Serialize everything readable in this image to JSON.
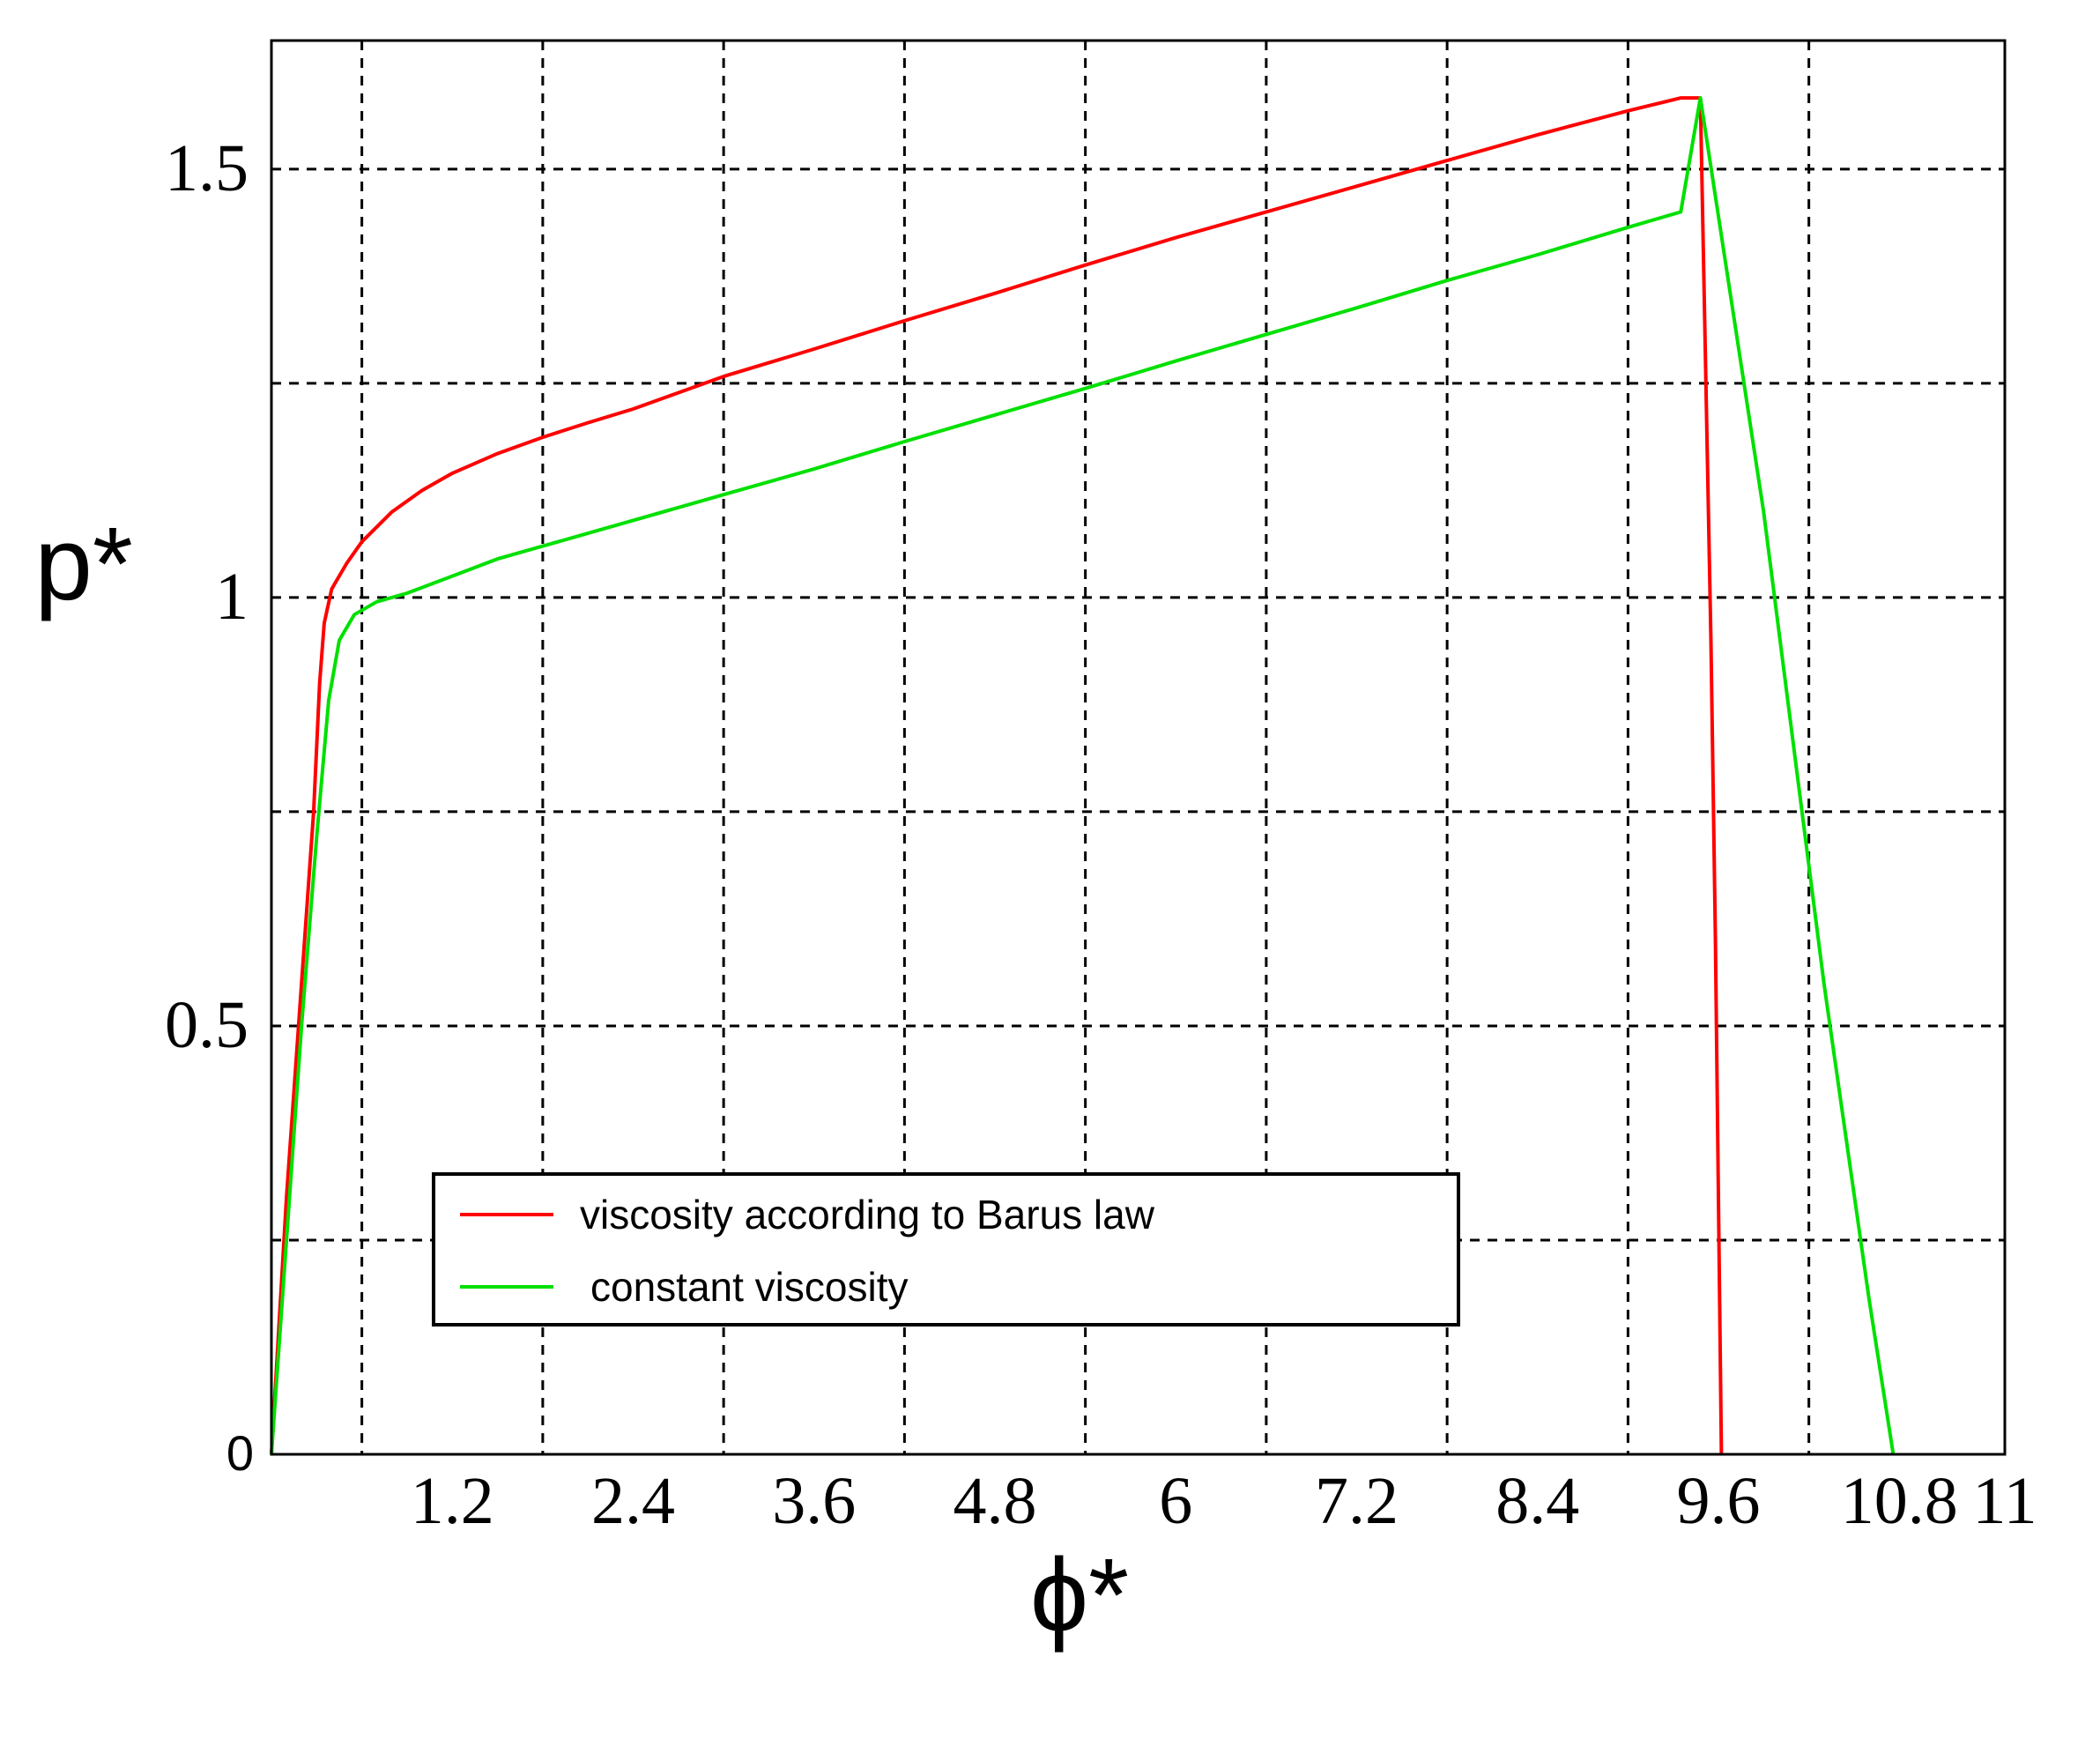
{
  "chart_data": {
    "type": "line",
    "xlabel": "ϕ*",
    "ylabel": "p*",
    "xlim": [
      0,
      11.5
    ],
    "ylim": [
      0,
      1.65
    ],
    "grid": true,
    "legend_position": "lower-left",
    "x_ticks": [
      {
        "value": 1.2,
        "label": "1.2"
      },
      {
        "value": 2.4,
        "label": "2.4"
      },
      {
        "value": 3.6,
        "label": "3.6"
      },
      {
        "value": 4.8,
        "label": "4.8"
      },
      {
        "value": 6.0,
        "label": "6"
      },
      {
        "value": 7.2,
        "label": "7.2"
      },
      {
        "value": 8.4,
        "label": "8.4"
      },
      {
        "value": 9.6,
        "label": "9.6"
      },
      {
        "value": 10.8,
        "label": "10.8"
      },
      {
        "value": 11.5,
        "label": "11"
      }
    ],
    "y_ticks": [
      {
        "value": 0,
        "label": "0"
      },
      {
        "value": 0.5,
        "label": "0.5"
      },
      {
        "value": 1.0,
        "label": "1"
      },
      {
        "value": 1.5,
        "label": "1.5"
      }
    ],
    "x_gridlines": [
      0.6,
      1.8,
      3.0,
      4.2,
      5.4,
      6.6,
      7.8,
      9.0,
      10.2
    ],
    "y_gridlines": [
      0.25,
      0.5,
      0.75,
      1.0,
      1.25,
      1.5
    ],
    "series": [
      {
        "name": "viscosity according to Barus law",
        "color": "#ff0000",
        "points": [
          [
            0.0,
            0.0
          ],
          [
            0.1,
            0.3
          ],
          [
            0.2,
            0.55
          ],
          [
            0.28,
            0.75
          ],
          [
            0.32,
            0.9
          ],
          [
            0.35,
            0.97
          ],
          [
            0.4,
            1.01
          ],
          [
            0.5,
            1.04
          ],
          [
            0.6,
            1.065
          ],
          [
            0.8,
            1.1
          ],
          [
            1.0,
            1.125
          ],
          [
            1.2,
            1.145
          ],
          [
            1.5,
            1.168
          ],
          [
            1.8,
            1.187
          ],
          [
            2.1,
            1.204
          ],
          [
            2.4,
            1.22
          ],
          [
            3.0,
            1.258
          ],
          [
            3.6,
            1.29
          ],
          [
            4.2,
            1.323
          ],
          [
            4.8,
            1.355
          ],
          [
            5.4,
            1.388
          ],
          [
            6.0,
            1.42
          ],
          [
            6.6,
            1.45
          ],
          [
            7.2,
            1.48
          ],
          [
            7.8,
            1.51
          ],
          [
            8.4,
            1.54
          ],
          [
            9.0,
            1.568
          ],
          [
            9.35,
            1.583
          ],
          [
            9.48,
            1.583
          ],
          [
            9.55,
            0.95
          ],
          [
            9.58,
            0.6
          ],
          [
            9.6,
            0.3
          ],
          [
            9.62,
            0.0
          ]
        ]
      },
      {
        "name": "constant viscosity",
        "color": "#00e000",
        "points": [
          [
            0.0,
            0.0
          ],
          [
            0.1,
            0.25
          ],
          [
            0.2,
            0.5
          ],
          [
            0.3,
            0.72
          ],
          [
            0.38,
            0.88
          ],
          [
            0.45,
            0.95
          ],
          [
            0.55,
            0.98
          ],
          [
            0.7,
            0.995
          ],
          [
            0.9,
            1.005
          ],
          [
            1.2,
            1.025
          ],
          [
            1.5,
            1.045
          ],
          [
            1.8,
            1.06
          ],
          [
            2.4,
            1.09
          ],
          [
            3.0,
            1.12
          ],
          [
            3.6,
            1.15
          ],
          [
            4.2,
            1.182
          ],
          [
            4.8,
            1.213
          ],
          [
            5.4,
            1.244
          ],
          [
            6.0,
            1.276
          ],
          [
            6.6,
            1.307
          ],
          [
            7.2,
            1.338
          ],
          [
            7.8,
            1.37
          ],
          [
            8.4,
            1.4
          ],
          [
            9.0,
            1.432
          ],
          [
            9.35,
            1.45
          ],
          [
            9.48,
            1.583
          ],
          [
            9.9,
            1.1
          ],
          [
            10.3,
            0.55
          ],
          [
            10.6,
            0.18
          ],
          [
            10.76,
            0.0
          ]
        ]
      }
    ]
  }
}
